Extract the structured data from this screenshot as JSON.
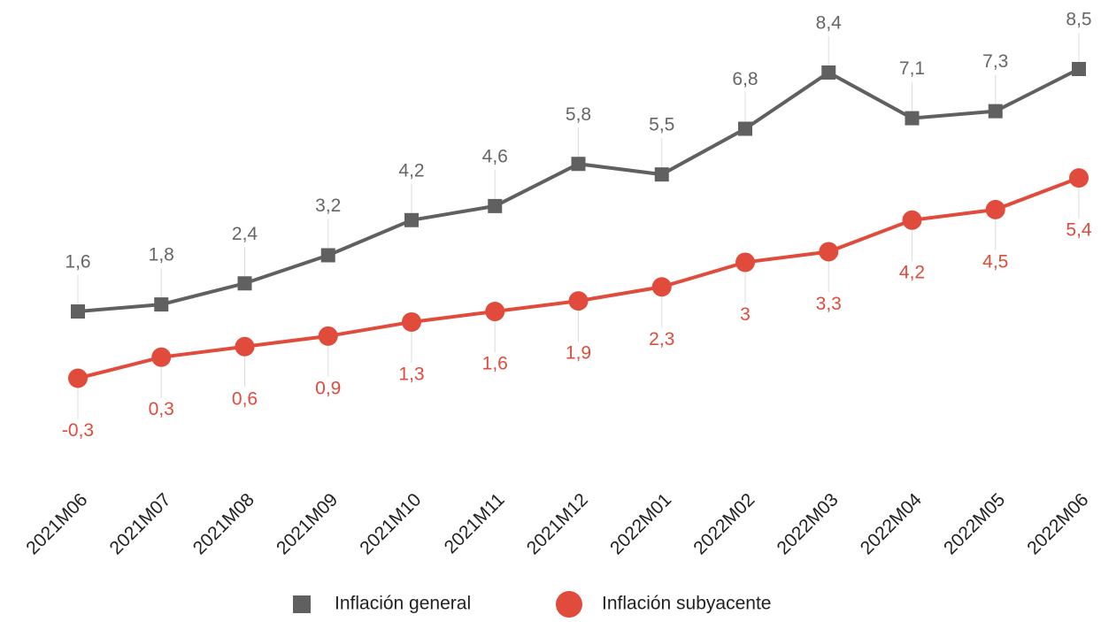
{
  "chart_data": {
    "type": "line",
    "categories": [
      "2021M06",
      "2021M07",
      "2021M08",
      "2021M09",
      "2021M10",
      "2021M11",
      "2021M12",
      "2022M01",
      "2022M02",
      "2022M03",
      "2022M04",
      "2022M05",
      "2022M06"
    ],
    "series": [
      {
        "name": "Inflación general",
        "color": "#606060",
        "marker": "square",
        "values": [
          1.6,
          1.8,
          2.4,
          3.2,
          4.2,
          4.6,
          5.8,
          5.5,
          6.8,
          8.4,
          7.1,
          7.3,
          8.5
        ],
        "value_labels": [
          "1,6",
          "1,8",
          "2,4",
          "3,2",
          "4,2",
          "4,6",
          "5,8",
          "5,5",
          "6,8",
          "8,4",
          "7,1",
          "7,3",
          "8,5"
        ]
      },
      {
        "name": "Inflación subyacente",
        "color": "#e04b3c",
        "marker": "circle",
        "values": [
          -0.3,
          0.3,
          0.6,
          0.9,
          1.3,
          1.6,
          1.9,
          2.3,
          3,
          3.3,
          4.2,
          4.5,
          5.4
        ],
        "value_labels": [
          "-0,3",
          "0,3",
          "0,6",
          "0,9",
          "1,3",
          "1,6",
          "1,9",
          "2,3",
          "3",
          "3,3",
          "4,2",
          "4,5",
          "5,4"
        ]
      }
    ],
    "legend": "bottom"
  }
}
